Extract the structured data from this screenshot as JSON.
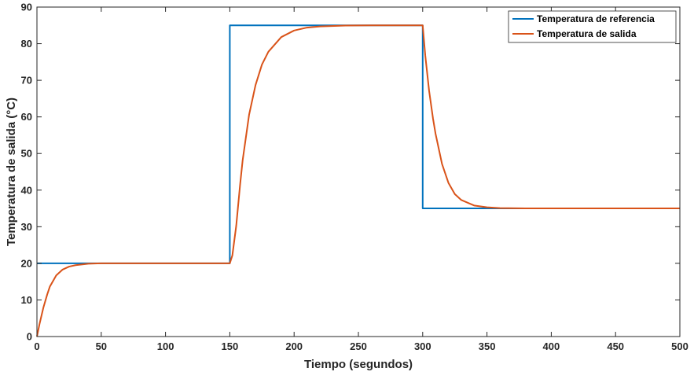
{
  "chart_data": {
    "type": "line",
    "title": "",
    "xlabel": "Tiempo (segundos)",
    "ylabel": "Temperatura de salida (°C)",
    "xlim": [
      0,
      500
    ],
    "ylim": [
      0,
      90
    ],
    "xticks": [
      0,
      50,
      100,
      150,
      200,
      250,
      300,
      350,
      400,
      450,
      500
    ],
    "yticks": [
      0,
      10,
      20,
      30,
      40,
      50,
      60,
      70,
      80,
      90
    ],
    "xtick_labels": [
      "0",
      "50",
      "100",
      "150",
      "200",
      "250",
      "300",
      "350",
      "400",
      "450",
      "500"
    ],
    "ytick_labels": [
      "0",
      "10",
      "20",
      "30",
      "40",
      "50",
      "60",
      "70",
      "80",
      "90"
    ],
    "grid": false,
    "legend_position": "top-right",
    "series": [
      {
        "name": "Temperatura de referencia",
        "color": "#0072BD",
        "x": [
          0,
          150,
          150,
          300,
          300,
          500
        ],
        "y": [
          20,
          20,
          85,
          85,
          35,
          35
        ]
      },
      {
        "name": "Temperatura de salida",
        "color": "#D95319",
        "x": [
          0,
          2,
          5,
          8,
          10,
          15,
          20,
          25,
          30,
          40,
          50,
          60,
          80,
          100,
          150,
          152,
          155,
          158,
          160,
          165,
          170,
          175,
          180,
          190,
          200,
          210,
          220,
          240,
          260,
          300,
          302,
          305,
          308,
          310,
          315,
          320,
          325,
          330,
          340,
          350,
          360,
          380,
          400,
          450,
          500
        ],
        "y": [
          0,
          3.4,
          7.9,
          11.5,
          13.6,
          16.7,
          18.3,
          19.1,
          19.5,
          19.9,
          20,
          20,
          20,
          20,
          20,
          22.2,
          30.3,
          41.5,
          48.2,
          60.6,
          68.7,
          74.3,
          77.8,
          81.8,
          83.6,
          84.4,
          84.7,
          84.95,
          85,
          85,
          76.8,
          67.1,
          59.6,
          55.4,
          47.2,
          42,
          38.9,
          37.3,
          35.8,
          35.3,
          35.1,
          35,
          35,
          35,
          35
        ]
      }
    ]
  }
}
